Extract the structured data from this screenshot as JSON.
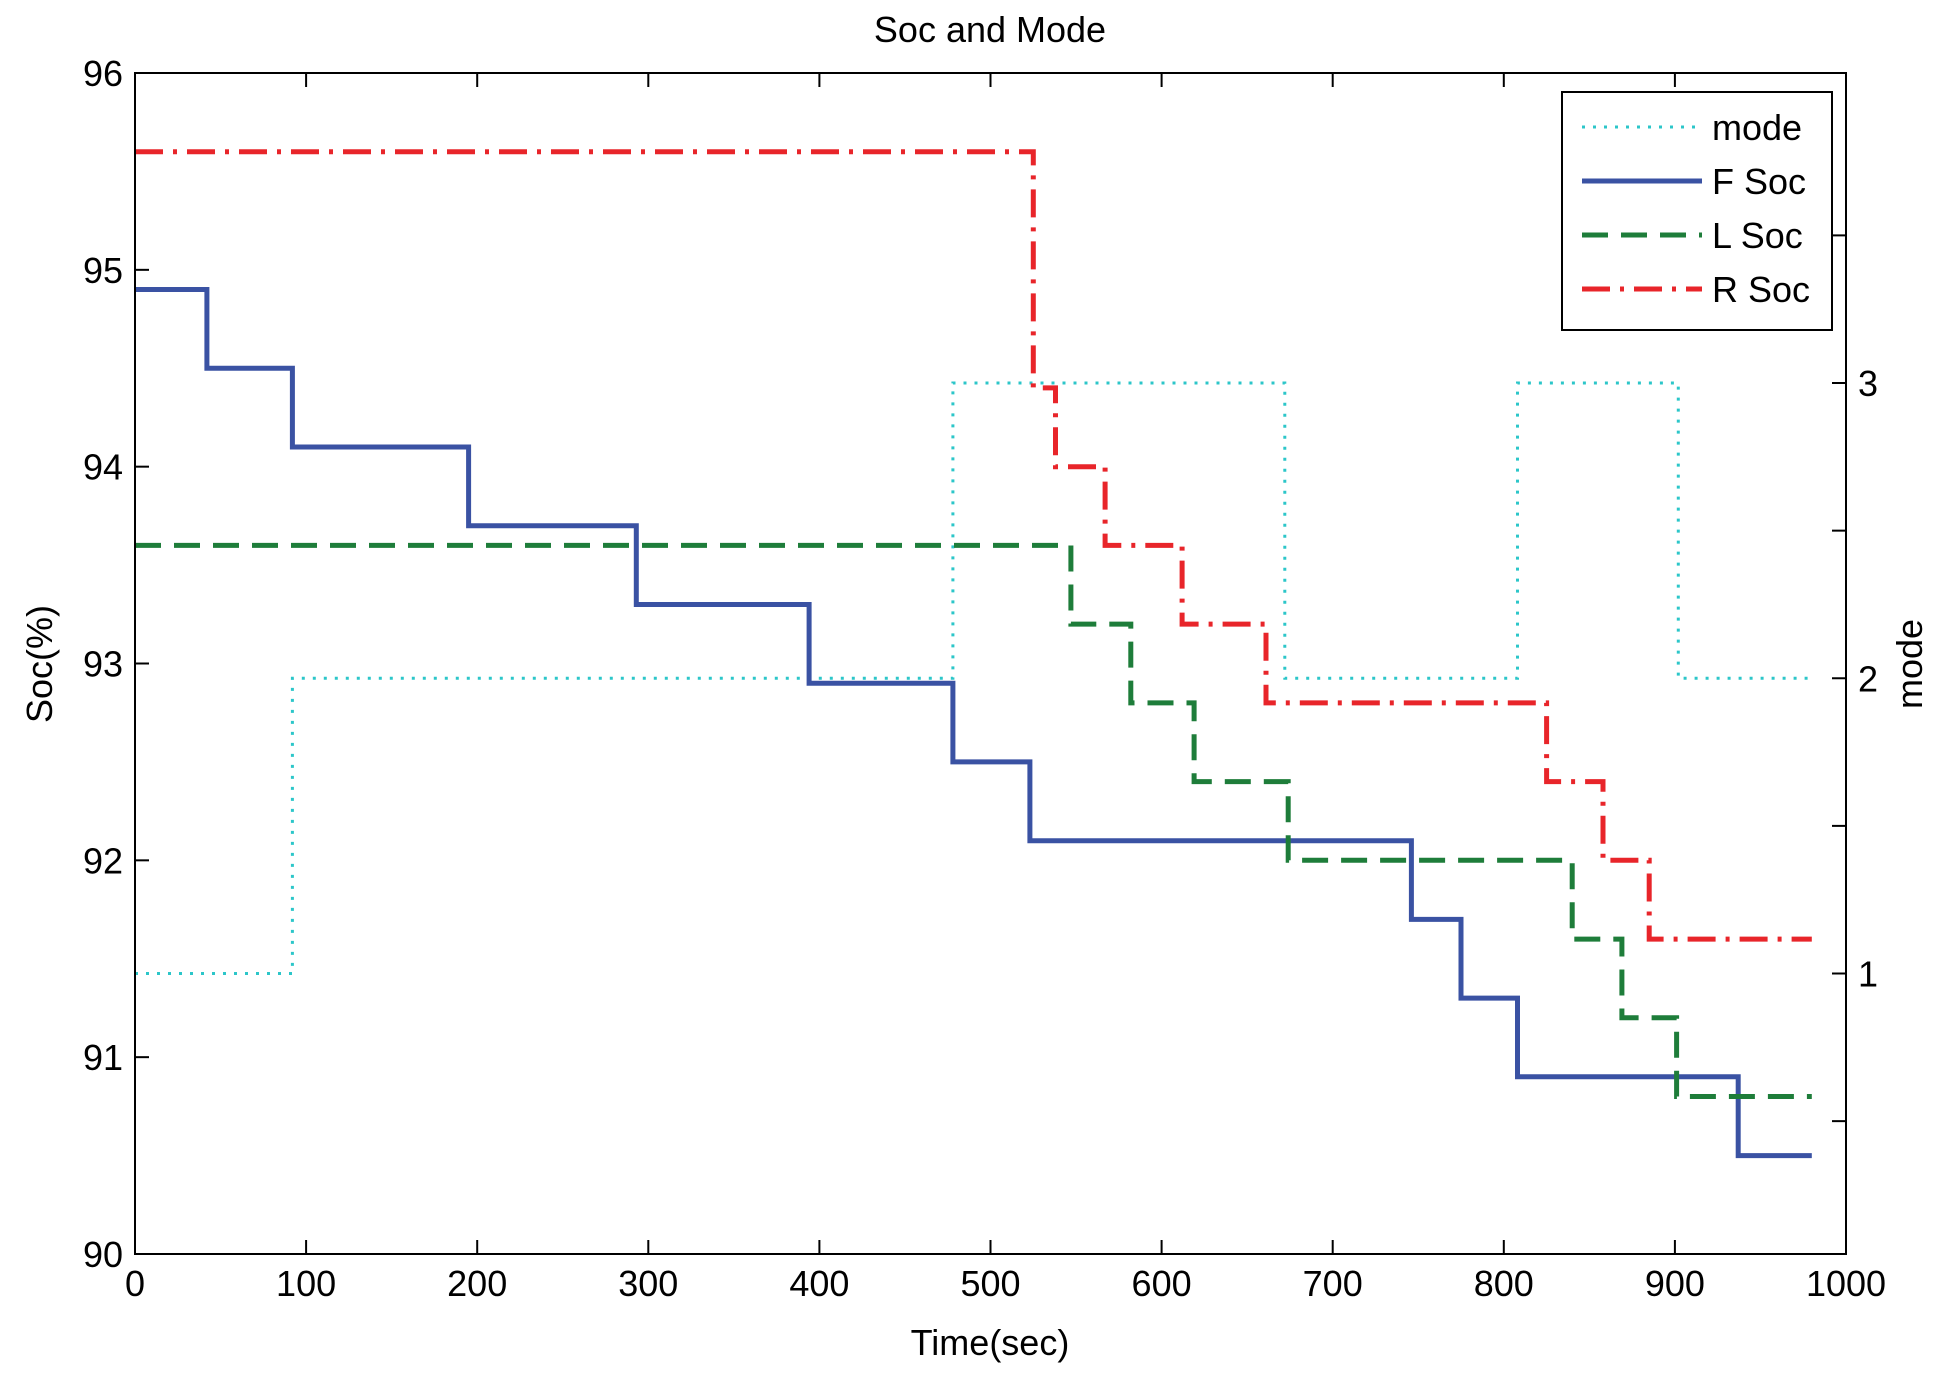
{
  "chart_data": {
    "type": "line",
    "title": "Soc and Mode",
    "xlabel": "Time(sec)",
    "ylabel": "Soc(%)",
    "y2label": "mode",
    "xlim": [
      0,
      1000
    ],
    "ylim": [
      90,
      96
    ],
    "y2lim": [
      0.05,
      4.05
    ],
    "xticks": [
      0,
      100,
      200,
      300,
      400,
      500,
      600,
      700,
      800,
      900,
      1000
    ],
    "yticks": [
      90,
      91,
      92,
      93,
      94,
      95,
      96
    ],
    "y2ticks": [
      1,
      2,
      3
    ],
    "y2ticks_unlabeled": [
      0.5,
      1.5,
      2.5,
      3.5
    ],
    "grid": false,
    "legend_position": "top-right",
    "series": [
      {
        "name": "mode",
        "axis": "right",
        "color": "#2cc6c9",
        "style": "dotted",
        "x": [
          0,
          92,
          92,
          478,
          478,
          672,
          672,
          808,
          808,
          902,
          902,
          980
        ],
        "y": [
          1,
          1,
          2,
          2,
          3,
          3,
          2,
          2,
          3,
          3,
          2,
          2
        ]
      },
      {
        "name": "F Soc",
        "axis": "left",
        "color": "#3a52a3",
        "style": "solid",
        "x": [
          0,
          42,
          42,
          92,
          92,
          195,
          195,
          293,
          293,
          394,
          394,
          478,
          478,
          523,
          523,
          746,
          746,
          775,
          775,
          808,
          808,
          937,
          937,
          980
        ],
        "y": [
          94.9,
          94.9,
          94.5,
          94.5,
          94.1,
          94.1,
          93.7,
          93.7,
          93.3,
          93.3,
          92.9,
          92.9,
          92.5,
          92.5,
          92.1,
          92.1,
          91.7,
          91.7,
          91.3,
          91.3,
          90.9,
          90.9,
          90.5,
          90.5
        ]
      },
      {
        "name": "L Soc",
        "axis": "left",
        "color": "#1e7d3a",
        "style": "dashed",
        "x": [
          0,
          547,
          547,
          582,
          582,
          619,
          619,
          674,
          674,
          840,
          840,
          869,
          869,
          901,
          901,
          980
        ],
        "y": [
          93.6,
          93.6,
          93.2,
          93.2,
          92.8,
          92.8,
          92.4,
          92.4,
          92.0,
          92.0,
          91.6,
          91.6,
          91.2,
          91.2,
          90.8,
          90.8
        ]
      },
      {
        "name": "R Soc",
        "axis": "left",
        "color": "#e8252a",
        "style": "dashdot",
        "x": [
          0,
          525,
          525,
          538,
          538,
          567,
          567,
          612,
          612,
          661,
          661,
          825,
          825,
          858,
          858,
          885,
          885,
          980
        ],
        "y": [
          95.6,
          95.6,
          94.4,
          94.4,
          94.0,
          94.0,
          93.6,
          93.6,
          93.2,
          93.2,
          92.8,
          92.8,
          92.4,
          92.4,
          92.0,
          92.0,
          91.6,
          91.6
        ]
      }
    ]
  }
}
